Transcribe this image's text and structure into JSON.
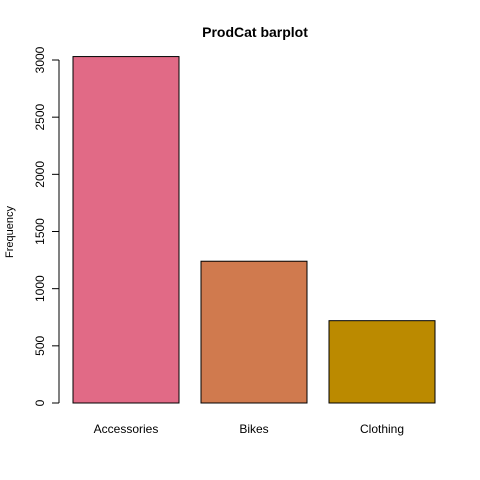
{
  "chart_data": {
    "type": "bar",
    "title": "ProdCat barplot",
    "xlabel": "",
    "ylabel": "Frequency",
    "categories": [
      "Accessories",
      "Bikes",
      "Clothing"
    ],
    "values": [
      3030,
      1240,
      720
    ],
    "colors": [
      "#E16A86",
      "#D07A4E",
      "#BB8A00"
    ],
    "ylim": [
      0,
      3000
    ],
    "yticks": [
      0,
      500,
      1000,
      1500,
      2000,
      2500,
      3000
    ],
    "grid": false,
    "legend": "none"
  }
}
